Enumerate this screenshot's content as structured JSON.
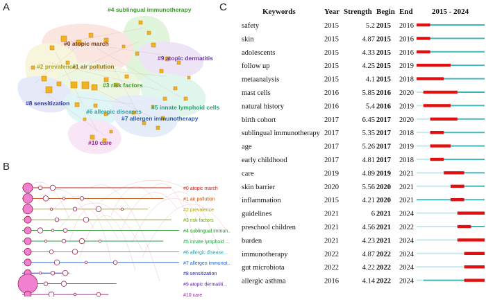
{
  "panel_a": {
    "letter": "A",
    "clusters": [
      {
        "label": "#4 sublingual immunotherapy",
        "color": "#3a9a2a"
      },
      {
        "label": "#0 atopic march",
        "color": "#7a3a1a"
      },
      {
        "label": "#9 atopic dermatitis",
        "color": "#6a3aa0"
      },
      {
        "label": "#2 prevalence",
        "color": "#a8a020"
      },
      {
        "label": "#1 air pollution",
        "color": "#a06a10"
      },
      {
        "label": "#3 risk factors",
        "color": "#3a9a2a"
      },
      {
        "label": "#8 sensitization",
        "color": "#2a3aa0"
      },
      {
        "label": "#5 innate lymphoid cells",
        "color": "#2aa070"
      },
      {
        "label": "#6 allergic diseases",
        "color": "#2aa0a0"
      },
      {
        "label": "#7 allergen immunotherapy",
        "color": "#2a5aa0"
      },
      {
        "label": "#10 care",
        "color": "#a02a90"
      }
    ]
  },
  "panel_b": {
    "letter": "B",
    "rows": [
      {
        "label": "#0 atopic march",
        "color": "#c0201a"
      },
      {
        "label": "#1 air pollution",
        "color": "#c05010"
      },
      {
        "label": "#2 prevalence",
        "color": "#b0a010"
      },
      {
        "label": "#3 risk factors",
        "color": "#70a010"
      },
      {
        "label": "#4 sublingual immun...",
        "color": "#209020"
      },
      {
        "label": "#5 innate lymphoid ...",
        "color": "#20a040"
      },
      {
        "label": "#6 allergic disease...",
        "color": "#20a0a0"
      },
      {
        "label": "#7 allergen immunot...",
        "color": "#2060c0"
      },
      {
        "label": "#8 sensitization",
        "color": "#2020a0"
      },
      {
        "label": "#9 atopic dermatiti...",
        "color": "#6020a0"
      },
      {
        "label": "#10 care",
        "color": "#a020a0"
      }
    ]
  },
  "panel_c": {
    "letter": "C",
    "headers": {
      "keywords": "Keywords",
      "year": "Year",
      "strength": "Strength",
      "begin": "Begin",
      "end": "End",
      "range": "2015 - 2024"
    },
    "range_start": 2015,
    "range_end": 2024,
    "bar_color": "#e01010",
    "line_color": "#40b8c0",
    "faint_color": "#c8e8ee",
    "rows": [
      {
        "keyword": "safety",
        "year": "2015",
        "strength": "5.2",
        "begin": "2015",
        "end": "2016"
      },
      {
        "keyword": "skin",
        "year": "2015",
        "strength": "4.87",
        "begin": "2015",
        "end": "2016"
      },
      {
        "keyword": "adolescents",
        "year": "2015",
        "strength": "4.33",
        "begin": "2015",
        "end": "2016"
      },
      {
        "keyword": "follow up",
        "year": "2015",
        "strength": "4.25",
        "begin": "2015",
        "end": "2019"
      },
      {
        "keyword": "metaanalysis",
        "year": "2015",
        "strength": "4.1",
        "begin": "2015",
        "end": "2018"
      },
      {
        "keyword": "mast cells",
        "year": "2016",
        "strength": "5.85",
        "begin": "2016",
        "end": "2020"
      },
      {
        "keyword": "natural history",
        "year": "2016",
        "strength": "5.4",
        "begin": "2016",
        "end": "2019"
      },
      {
        "keyword": "birth cohort",
        "year": "2017",
        "strength": "6.45",
        "begin": "2017",
        "end": "2020"
      },
      {
        "keyword": "sublingual immunotherapy",
        "year": "2017",
        "strength": "5.35",
        "begin": "2017",
        "end": "2018"
      },
      {
        "keyword": "age",
        "year": "2017",
        "strength": "5.26",
        "begin": "2017",
        "end": "2019"
      },
      {
        "keyword": "early childhood",
        "year": "2017",
        "strength": "4.81",
        "begin": "2017",
        "end": "2018"
      },
      {
        "keyword": "care",
        "year": "2019",
        "strength": "4.89",
        "begin": "2019",
        "end": "2021"
      },
      {
        "keyword": "skin barrier",
        "year": "2020",
        "strength": "5.56",
        "begin": "2020",
        "end": "2021"
      },
      {
        "keyword": "inflammation",
        "year": "2015",
        "strength": "4.21",
        "begin": "2020",
        "end": "2021"
      },
      {
        "keyword": "guidelines",
        "year": "2021",
        "strength": "6",
        "begin": "2021",
        "end": "2024"
      },
      {
        "keyword": "preschool children",
        "year": "2021",
        "strength": "4.56",
        "begin": "2021",
        "end": "2022"
      },
      {
        "keyword": "burden",
        "year": "2021",
        "strength": "4.23",
        "begin": "2021",
        "end": "2024"
      },
      {
        "keyword": "immunotherapy",
        "year": "2022",
        "strength": "4.87",
        "begin": "2022",
        "end": "2024"
      },
      {
        "keyword": "gut microbiota",
        "year": "2022",
        "strength": "4.22",
        "begin": "2022",
        "end": "2024"
      },
      {
        "keyword": "allergic asthma",
        "year": "2016",
        "strength": "4.14",
        "begin": "2022",
        "end": "2024"
      }
    ]
  }
}
